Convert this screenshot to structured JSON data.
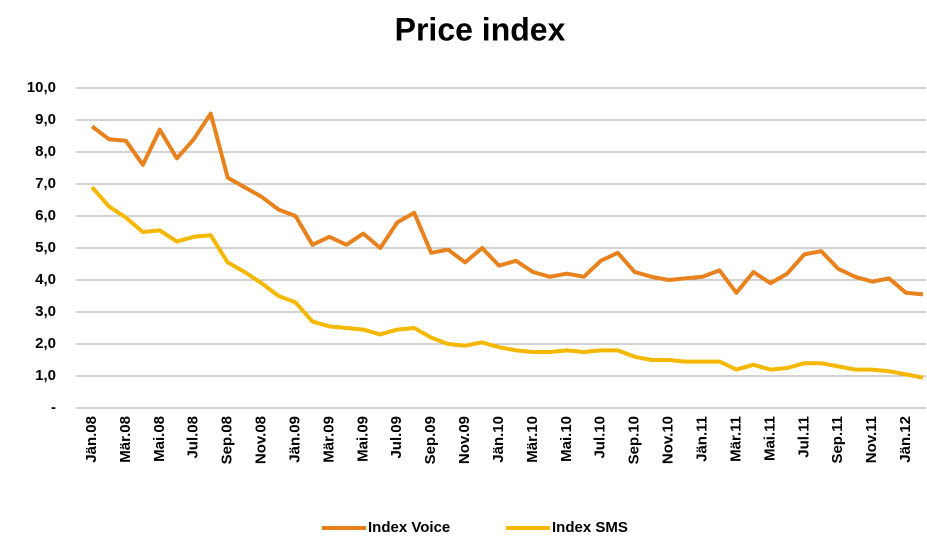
{
  "chart_data": {
    "type": "line",
    "title": "Price index",
    "categories": [
      "Jän.08",
      null,
      "Mär.08",
      null,
      "Mai.08",
      null,
      "Jul.08",
      null,
      "Sep.08",
      null,
      "Nov.08",
      null,
      "Jän.09",
      null,
      "Mär.09",
      null,
      "Mai.09",
      null,
      "Jul.09",
      null,
      "Sep.09",
      null,
      "Nov.09",
      null,
      "Jän.10",
      null,
      "Mär.10",
      null,
      "Mai.10",
      null,
      "Jul.10",
      null,
      "Sep.10",
      null,
      "Nov.10",
      null,
      "Jän.11",
      null,
      "Mär.11",
      null,
      "Mai.11",
      null,
      "Jul.11",
      null,
      "Sep.11",
      null,
      "Nov.11",
      null,
      "Jän.12",
      null
    ],
    "series": [
      {
        "name": "Index Voice",
        "color": "#e8821e",
        "values": [
          8.8,
          8.4,
          8.35,
          7.6,
          8.7,
          7.8,
          8.4,
          9.2,
          7.2,
          6.9,
          6.6,
          6.2,
          6.0,
          5.1,
          5.35,
          5.1,
          5.45,
          5.0,
          5.8,
          6.1,
          4.85,
          4.95,
          4.55,
          5.0,
          4.45,
          4.6,
          4.25,
          4.1,
          4.2,
          4.1,
          4.6,
          4.85,
          4.25,
          4.1,
          4.0,
          4.05,
          4.1,
          4.3,
          3.6,
          4.25,
          3.9,
          4.2,
          4.8,
          4.9,
          4.35,
          4.1,
          3.95,
          4.05,
          3.6,
          3.55
        ]
      },
      {
        "name": "Index SMS",
        "color": "#f5b800",
        "values": [
          6.9,
          6.3,
          5.95,
          5.5,
          5.55,
          5.2,
          5.35,
          5.4,
          4.55,
          4.25,
          3.9,
          3.5,
          3.3,
          2.7,
          2.55,
          2.5,
          2.45,
          2.3,
          2.45,
          2.5,
          2.2,
          2.0,
          1.95,
          2.05,
          1.9,
          1.8,
          1.75,
          1.75,
          1.8,
          1.75,
          1.8,
          1.8,
          1.6,
          1.5,
          1.5,
          1.45,
          1.45,
          1.45,
          1.2,
          1.35,
          1.2,
          1.25,
          1.4,
          1.4,
          1.3,
          1.2,
          1.2,
          1.15,
          1.05,
          0.95
        ]
      }
    ],
    "ylim": [
      0,
      10
    ],
    "yticks": [
      {
        "value": 0,
        "label": "-"
      },
      {
        "value": 1,
        "label": "1,0"
      },
      {
        "value": 2,
        "label": "2,0"
      },
      {
        "value": 3,
        "label": "3,0"
      },
      {
        "value": 4,
        "label": "4,0"
      },
      {
        "value": 5,
        "label": "5,0"
      },
      {
        "value": 6,
        "label": "6,0"
      },
      {
        "value": 7,
        "label": "7,0"
      },
      {
        "value": 8,
        "label": "8,0"
      },
      {
        "value": 9,
        "label": "9,0"
      },
      {
        "value": 10,
        "label": "10,0"
      }
    ],
    "grid": true,
    "legend": "bottom"
  }
}
